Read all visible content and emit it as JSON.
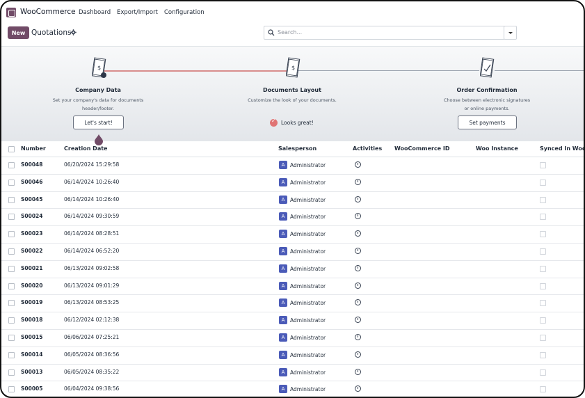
{
  "app": {
    "name": "WooCommerce",
    "menu": [
      "Dashboard",
      "Export/Import",
      "Configuration"
    ]
  },
  "control": {
    "new_label": "New",
    "breadcrumb": "Quotations",
    "search_placeholder": "Search..."
  },
  "onboarding": {
    "steps": [
      {
        "title": "Company Data",
        "desc1": "Set your company's data for documents",
        "desc2": "header/footer.",
        "action": "Let's start!"
      },
      {
        "title": "Documents Layout",
        "desc1": "Customize the look of your documents.",
        "desc2": "",
        "action": "Looks great!"
      },
      {
        "title": "Order Confirmation",
        "desc1": "Choose between electronic signatures",
        "desc2": "or online payments.",
        "action": "Set payments"
      }
    ]
  },
  "table": {
    "headers": [
      "Number",
      "Creation Date",
      "Salesperson",
      "Activities",
      "WooCommerce ID",
      "Woo Instance",
      "Synced In Wooco"
    ],
    "rows": [
      {
        "number": "S00048",
        "date": "06/20/2024 15:29:58",
        "salesperson": "Administrator",
        "initial": "A"
      },
      {
        "number": "S00046",
        "date": "06/14/2024 10:26:40",
        "salesperson": "Administrator",
        "initial": "A"
      },
      {
        "number": "S00045",
        "date": "06/14/2024 10:26:40",
        "salesperson": "Administrator",
        "initial": "A"
      },
      {
        "number": "S00024",
        "date": "06/14/2024 09:30:59",
        "salesperson": "Administrator",
        "initial": "A"
      },
      {
        "number": "S00023",
        "date": "06/14/2024 08:28:51",
        "salesperson": "Administrator",
        "initial": "A"
      },
      {
        "number": "S00022",
        "date": "06/14/2024 06:52:20",
        "salesperson": "Administrator",
        "initial": "A"
      },
      {
        "number": "S00021",
        "date": "06/13/2024 09:02:58",
        "salesperson": "Administrator",
        "initial": "A"
      },
      {
        "number": "S00020",
        "date": "06/13/2024 09:01:29",
        "salesperson": "Administrator",
        "initial": "A"
      },
      {
        "number": "S00019",
        "date": "06/13/2024 08:53:25",
        "salesperson": "Administrator",
        "initial": "A"
      },
      {
        "number": "S00018",
        "date": "06/12/2024 02:12:38",
        "salesperson": "Administrator",
        "initial": "A"
      },
      {
        "number": "S00015",
        "date": "06/06/2024 07:25:21",
        "salesperson": "Administrator",
        "initial": "A"
      },
      {
        "number": "S00014",
        "date": "06/05/2024 08:36:56",
        "salesperson": "Administrator",
        "initial": "A"
      },
      {
        "number": "S00013",
        "date": "06/05/2024 08:35:22",
        "salesperson": "Administrator",
        "initial": "A"
      },
      {
        "number": "S00005",
        "date": "06/04/2024 09:38:56",
        "salesperson": "Administrator",
        "initial": "A"
      }
    ]
  },
  "colors": {
    "brand": "#714b67",
    "avatar": "#4b5bb8",
    "progress": "#d98d8d"
  }
}
